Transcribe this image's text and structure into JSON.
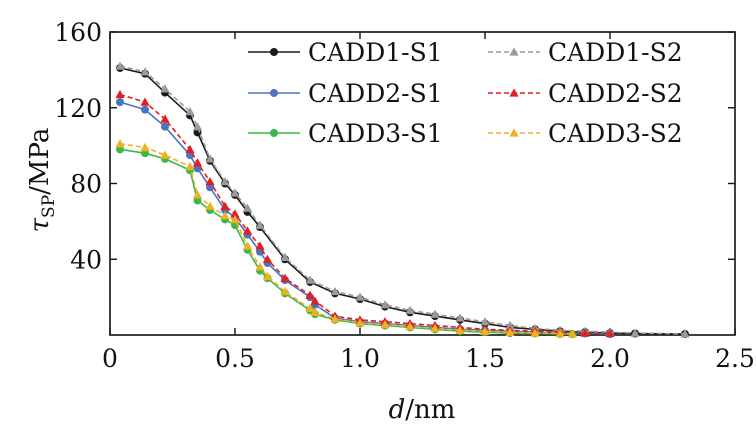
{
  "chart_data": {
    "type": "line",
    "xlabel": "d/nm",
    "xlabel_var": "d",
    "xlabel_unit": "/nm",
    "ylabel": "τSP/MPa",
    "ylabel_var": "τ",
    "ylabel_sub": "SP",
    "ylabel_unit": "/MPa",
    "xlim": [
      0,
      2.5
    ],
    "ylim": [
      0,
      160
    ],
    "xticks": [
      0,
      0.5,
      1.0,
      1.5,
      2.0,
      2.5
    ],
    "xtick_labels": [
      "0",
      "0.5",
      "1.0",
      "1.5",
      "2.0",
      "2.5"
    ],
    "yticks": [
      40,
      80,
      120,
      160
    ],
    "ytick_labels": [
      "40",
      "80",
      "120",
      "160"
    ],
    "grid": false,
    "legend_position": "top-right",
    "legend_columns": 2,
    "series": [
      {
        "name": "CADD1-S1",
        "color": "#1a1a1a",
        "line_style": "solid",
        "marker": "circle",
        "x": [
          0.04,
          0.14,
          0.22,
          0.32,
          0.35,
          0.4,
          0.46,
          0.5,
          0.55,
          0.6,
          0.7,
          0.8,
          0.9,
          1.0,
          1.1,
          1.2,
          1.3,
          1.4,
          1.5,
          1.6,
          1.7,
          1.8,
          1.9,
          2.0,
          2.1,
          2.3
        ],
        "y": [
          141,
          138,
          128,
          116,
          107,
          92,
          80,
          74,
          65,
          57,
          40,
          28,
          22,
          19,
          15,
          12,
          10,
          8,
          6,
          4,
          3,
          2,
          1.5,
          1,
          0.8,
          0.5
        ]
      },
      {
        "name": "CADD1-S2",
        "color": "#9a9a9a",
        "line_style": "dashed",
        "marker": "triangle",
        "x": [
          0.04,
          0.14,
          0.22,
          0.32,
          0.35,
          0.4,
          0.46,
          0.5,
          0.55,
          0.6,
          0.7,
          0.8,
          0.9,
          1.0,
          1.1,
          1.2,
          1.3,
          1.4,
          1.5,
          1.6,
          1.7,
          1.8,
          1.9,
          2.0,
          2.1,
          2.3
        ],
        "y": [
          142,
          139,
          130,
          118,
          110,
          93,
          81,
          75,
          67,
          58,
          41,
          29,
          23,
          20,
          16,
          13,
          11,
          9,
          7,
          5,
          3.5,
          2.5,
          2,
          1.5,
          1,
          0.6
        ]
      },
      {
        "name": "CADD2-S1",
        "color": "#4a73c2",
        "line_style": "solid",
        "marker": "circle",
        "x": [
          0.04,
          0.14,
          0.22,
          0.32,
          0.35,
          0.4,
          0.46,
          0.5,
          0.55,
          0.6,
          0.63,
          0.7,
          0.8,
          0.82,
          0.9,
          1.0,
          1.1,
          1.2,
          1.3,
          1.4,
          1.5,
          1.6,
          1.7,
          1.8,
          1.9,
          2.0
        ],
        "y": [
          123,
          119,
          110,
          95,
          88,
          78,
          66,
          62,
          53,
          44,
          38,
          29,
          20,
          16,
          9,
          7,
          6,
          5,
          4,
          3,
          2.5,
          2,
          1.5,
          1,
          0.8,
          0.5
        ]
      },
      {
        "name": "CADD2-S2",
        "color": "#e02020",
        "line_style": "dashed",
        "marker": "triangle",
        "x": [
          0.04,
          0.14,
          0.22,
          0.32,
          0.35,
          0.4,
          0.46,
          0.5,
          0.55,
          0.6,
          0.63,
          0.7,
          0.8,
          0.82,
          0.9,
          1.0,
          1.1,
          1.2,
          1.3,
          1.4,
          1.5,
          1.6,
          1.7,
          1.8,
          1.9,
          2.0
        ],
        "y": [
          127,
          123,
          114,
          98,
          91,
          81,
          68,
          64,
          55,
          47,
          40,
          30,
          21,
          18,
          10,
          8,
          7,
          6,
          5,
          4,
          3,
          2.5,
          2,
          1.5,
          1,
          0.8
        ]
      },
      {
        "name": "CADD3-S1",
        "color": "#3cb84a",
        "line_style": "solid",
        "marker": "circle",
        "x": [
          0.04,
          0.14,
          0.22,
          0.32,
          0.35,
          0.4,
          0.46,
          0.5,
          0.55,
          0.6,
          0.63,
          0.7,
          0.8,
          0.82,
          0.9,
          1.0,
          1.1,
          1.2,
          1.3,
          1.4,
          1.5,
          1.6,
          1.7,
          1.8,
          1.85
        ],
        "y": [
          98,
          96,
          93,
          87,
          71,
          66,
          61,
          58,
          45,
          34,
          30,
          22,
          13,
          11,
          8,
          6,
          5,
          4,
          3,
          2,
          1.5,
          1,
          0.8,
          0.5,
          0.4
        ]
      },
      {
        "name": "CADD3-S2",
        "color": "#f0b020",
        "line_style": "dashed",
        "marker": "triangle",
        "x": [
          0.04,
          0.14,
          0.22,
          0.32,
          0.35,
          0.4,
          0.46,
          0.5,
          0.55,
          0.6,
          0.63,
          0.7,
          0.8,
          0.82,
          0.9,
          1.0,
          1.1,
          1.2,
          1.3,
          1.4,
          1.5,
          1.6,
          1.7,
          1.8,
          1.85
        ],
        "y": [
          101,
          99,
          95,
          89,
          74,
          68,
          63,
          61,
          47,
          36,
          31,
          23,
          14,
          12,
          8.5,
          6.5,
          5.5,
          4.5,
          3.5,
          2.5,
          2,
          1.5,
          1,
          0.8,
          0.6
        ]
      }
    ]
  }
}
